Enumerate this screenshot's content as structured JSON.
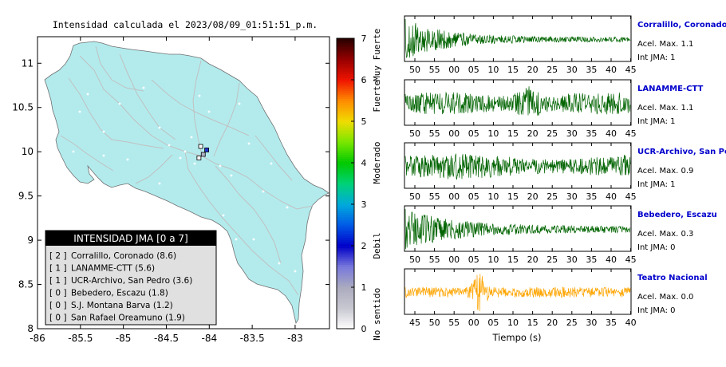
{
  "map": {
    "title": "Intensidad calculada el 2023/08/09_01:51:51_p.m.",
    "lat_ticks": [
      "11",
      "10.5",
      "10",
      "9.5",
      "9",
      "8.5",
      "8"
    ],
    "lon_ticks": [
      "-86",
      "-85.5",
      "-85",
      "-84.5",
      "-84",
      "-83.5",
      "-83"
    ],
    "lat_range": [
      8,
      11.3
    ],
    "lon_range": [
      -86,
      -82.6
    ],
    "land_color": "#b3ebed",
    "road_color": "#c0c0c0",
    "stations": [
      {
        "lon": -84.1,
        "lat": 10.06,
        "fill": "#ffffff"
      },
      {
        "lon": -84.03,
        "lat": 10.02,
        "fill": "#2233cc"
      },
      {
        "lon": -84.07,
        "lat": 9.97,
        "fill": "#b0b0c8"
      },
      {
        "lon": -84.12,
        "lat": 9.93,
        "fill": "#ffffff"
      }
    ]
  },
  "colorbar": {
    "ticks": [
      "0",
      "1",
      "2",
      "3",
      "4",
      "5",
      "6",
      "7"
    ],
    "labels": [
      "No sentido",
      "Debil",
      "Moderado",
      "Fuerte",
      "Muy Fuerte"
    ],
    "min": 0,
    "max": 7
  },
  "legend": {
    "header": "INTENSIDAD JMA [0 a 7]",
    "rows": [
      {
        "intensity": "[ 2 ]",
        "name": "Corralillo, Coronado (8.6)"
      },
      {
        "intensity": "[ 1 ]",
        "name": "LANAMME-CTT (5.6)"
      },
      {
        "intensity": "[ 1 ]",
        "name": "UCR-Archivo, San Pedro (3.6)"
      },
      {
        "intensity": "[ 0 ]",
        "name": "Bebedero, Escazu (1.8)"
      },
      {
        "intensity": "[ 0 ]",
        "name": "S.J. Montana Barva (1.2)"
      },
      {
        "intensity": "[ 0 ]",
        "name": "San Rafael Oreamuno (1.9)"
      }
    ]
  },
  "seismograms": [
    {
      "name": "Corralillo, Coronado",
      "acel": "Acel. Max. 1.1",
      "int": "Int JMA: 1",
      "color": "#006400",
      "ticks": [
        "50",
        "55",
        "00",
        "05",
        "10",
        "15",
        "20",
        "25",
        "30",
        "35",
        "40",
        "45"
      ],
      "amplitude": 1.1
    },
    {
      "name": "LANAMME-CTT",
      "acel": "Acel. Max. 1.1",
      "int": "Int JMA: 1",
      "color": "#006400",
      "ticks": [
        "50",
        "55",
        "00",
        "05",
        "10",
        "15",
        "20",
        "25",
        "30",
        "35",
        "40",
        "45"
      ],
      "amplitude": 1.1
    },
    {
      "name": "UCR-Archivo, San Pedro",
      "acel": "Acel. Max. 0.9",
      "int": "Int JMA: 1",
      "color": "#006400",
      "ticks": [
        "50",
        "55",
        "00",
        "05",
        "10",
        "15",
        "20",
        "25",
        "30",
        "35",
        "40",
        "45"
      ],
      "amplitude": 0.9
    },
    {
      "name": "Bebedero, Escazu",
      "acel": "Acel. Max. 0.3",
      "int": "Int JMA: 0",
      "color": "#006400",
      "ticks": [
        "50",
        "55",
        "00",
        "05",
        "10",
        "15",
        "20",
        "25",
        "30",
        "35",
        "40",
        "45"
      ],
      "amplitude": 0.3
    },
    {
      "name": "Teatro Nacional",
      "acel": "Acel. Max. 0.0",
      "int": "Int JMA: 0",
      "color": "#ffa500",
      "ticks": [
        "45",
        "50",
        "55",
        "00",
        "05",
        "10",
        "15",
        "20",
        "25",
        "30",
        "35",
        "40"
      ],
      "amplitude": 0.0
    }
  ],
  "xaxis_label": "Tiempo (s)"
}
